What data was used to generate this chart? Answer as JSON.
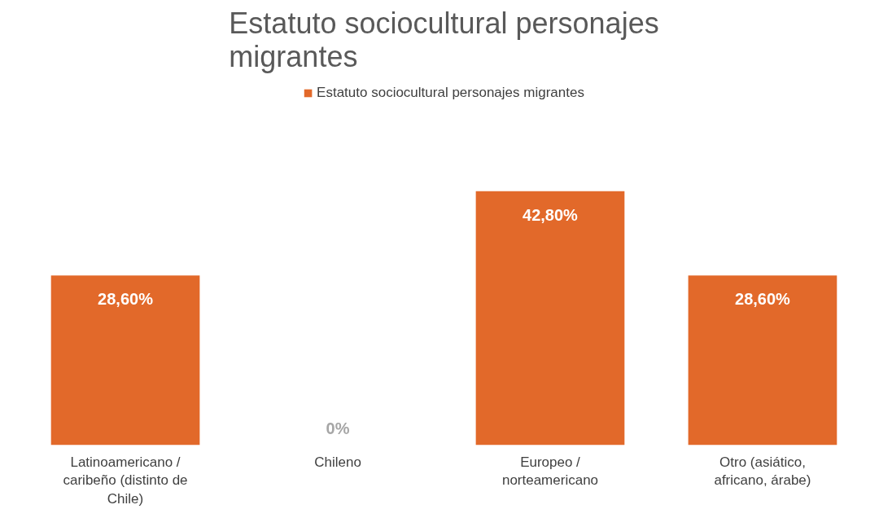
{
  "chart_data": {
    "type": "bar",
    "title": "Estatuto sociocultural personajes migrantes",
    "categories": [
      "Latinoamericano / caribeño (distinto de Chile)",
      "Chileno",
      "Europeo / norteamericano",
      "Otro (asiático, africano, árabe)"
    ],
    "series": [
      {
        "name": "Estatuto sociocultural personajes migrantes",
        "color": "#e2692a",
        "values": [
          28.6,
          0,
          42.8,
          28.6
        ],
        "value_labels": [
          "28,60%",
          "0%",
          "42,80%",
          "28,60%"
        ]
      }
    ],
    "legend": "top",
    "grid": false
  }
}
